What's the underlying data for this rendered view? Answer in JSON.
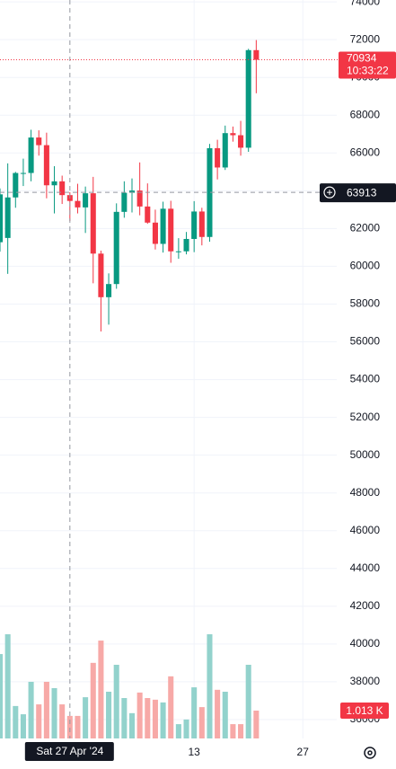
{
  "chart_data": {
    "type": "candlestick",
    "x": [
      "2024-04-18",
      "2024-04-19",
      "2024-04-20",
      "2024-04-21",
      "2024-04-22",
      "2024-04-23",
      "2024-04-24",
      "2024-04-25",
      "2024-04-26",
      "2024-04-27",
      "2024-04-28",
      "2024-04-29",
      "2024-04-30",
      "2024-05-01",
      "2024-05-02",
      "2024-05-03",
      "2024-05-04",
      "2024-05-05",
      "2024-05-06",
      "2024-05-07",
      "2024-05-08",
      "2024-05-09",
      "2024-05-10",
      "2024-05-11",
      "2024-05-12",
      "2024-05-13",
      "2024-05-14",
      "2024-05-15",
      "2024-05-16",
      "2024-05-17",
      "2024-05-18",
      "2024-05-19",
      "2024-05-20",
      "2024-05-21"
    ],
    "open": [
      61275,
      61500,
      63646,
      64940,
      64941,
      66819,
      66414,
      64289,
      64498,
      63770,
      63461,
      63118,
      63866,
      60672,
      58364,
      59060,
      62882,
      63892,
      64012,
      63166,
      62313,
      61187,
      63049,
      60792,
      60793,
      61448,
      62901,
      61553,
      66254,
      65231,
      67051,
      66940,
      66279,
      71446
    ],
    "high": [
      64125,
      65450,
      65000,
      65700,
      67230,
      67200,
      67075,
      65300,
      64800,
      63923,
      64370,
      64222,
      64735,
      60830,
      59625,
      63333,
      64500,
      64650,
      65500,
      64390,
      63000,
      63421,
      63469,
      61490,
      61818,
      63450,
      63100,
      66480,
      66700,
      67450,
      67400,
      67700,
      71515,
      71979
    ],
    "low": [
      60775,
      59600,
      63100,
      64250,
      64500,
      65860,
      63600,
      62800,
      63300,
      62400,
      62800,
      61765,
      59100,
      56550,
      56911,
      58811,
      62571,
      62850,
      62700,
      62250,
      60888,
      60727,
      60187,
      60400,
      60632,
      60750,
      61108,
      61300,
      64600,
      65100,
      66600,
      65857,
      66060,
      69162
    ],
    "close": [
      63810,
      63646,
      64940,
      64941,
      66819,
      66414,
      64289,
      64498,
      63770,
      63461,
      63118,
      63866,
      60672,
      58364,
      59060,
      62882,
      63892,
      64012,
      63166,
      62313,
      61187,
      63049,
      60792,
      60793,
      61448,
      62901,
      61553,
      66254,
      65231,
      67051,
      66940,
      66279,
      71446,
      70934
    ],
    "volume": [
      3.07,
      3.79,
      1.18,
      0.88,
      2.06,
      1.24,
      2.06,
      1.83,
      1.24,
      0.82,
      0.82,
      1.5,
      2.75,
      3.56,
      1.7,
      2.68,
      1.47,
      0.92,
      1.67,
      1.47,
      1.41,
      1.31,
      2.26,
      0.52,
      0.69,
      1.86,
      1.14,
      3.79,
      1.77,
      1.7,
      0.52,
      0.52,
      2.68,
      1.013
    ],
    "volume_last_label": "1.013 K",
    "up_color": "#089981",
    "down_color": "#f23645",
    "volume_up_color": "#92d2cc",
    "volume_down_color": "#f7a9a7",
    "countdown": "10:33:22",
    "crosshair": {
      "x": "2024-04-27",
      "x_label": "Sat 27 Apr '24",
      "price": 63913
    },
    "xlim": [
      "2024-04-18",
      "2024-06-08"
    ],
    "xticks": [
      {
        "value": "2024-05-13",
        "label": "13"
      },
      {
        "value": "2024-05-27",
        "label": "27"
      }
    ],
    "ylim": [
      35000,
      74100
    ],
    "yticks": [
      36000,
      38000,
      40000,
      42000,
      44000,
      46000,
      48000,
      50000,
      52000,
      54000,
      56000,
      58000,
      60000,
      62000,
      64000,
      66000,
      68000,
      70000,
      72000,
      74000
    ],
    "vlim": [
      0,
      4
    ],
    "grid": true
  }
}
